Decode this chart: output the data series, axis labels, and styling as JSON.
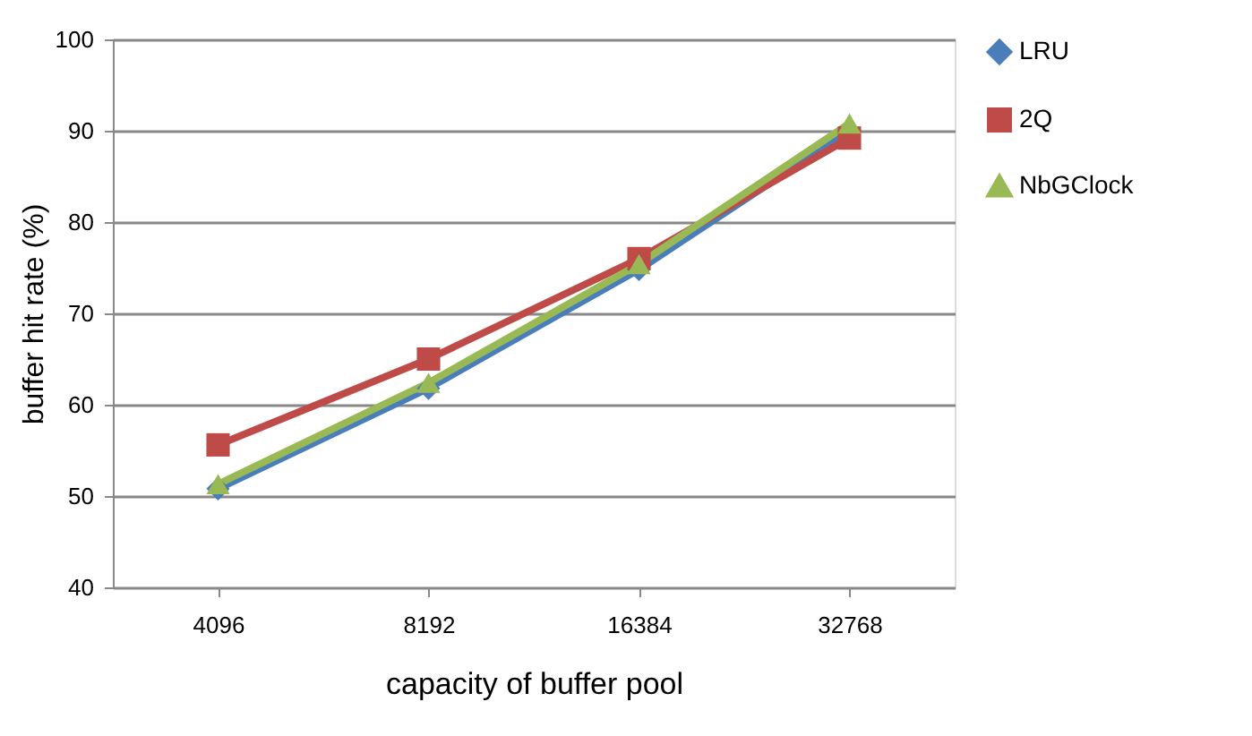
{
  "chart_data": {
    "type": "line",
    "xlabel": "capacity of buffer pool",
    "ylabel": "buffer hit rate (%)",
    "categories": [
      "4096",
      "8192",
      "16384",
      "32768"
    ],
    "series": [
      {
        "name": "LRU",
        "color": "#4a7ebb",
        "marker": "diamond",
        "values": [
          50.8,
          61.8,
          74.8,
          90
        ]
      },
      {
        "name": "2Q",
        "color": "#be4b48",
        "marker": "square",
        "values": [
          55.6,
          65,
          76,
          89.2
        ]
      },
      {
        "name": "NbGClock",
        "color": "#98b954",
        "marker": "triangle",
        "values": [
          51.3,
          62.4,
          75.4,
          90.8
        ]
      }
    ],
    "ylim": [
      40,
      100
    ],
    "yticks": [
      40,
      50,
      60,
      70,
      80,
      90,
      100
    ],
    "grid": "y",
    "legend": "right"
  }
}
